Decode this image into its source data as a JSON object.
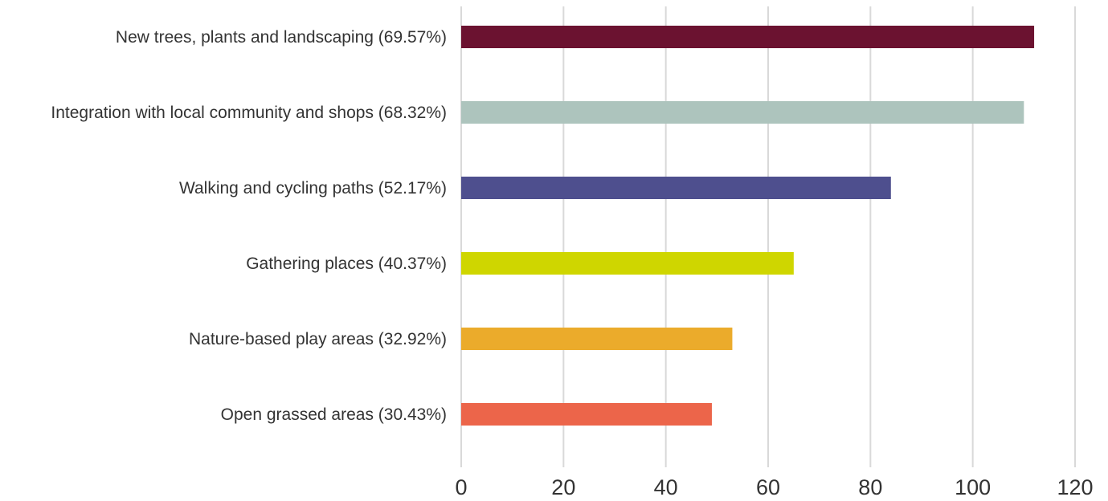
{
  "chart_data": {
    "type": "bar",
    "orientation": "horizontal",
    "categories": [
      "New trees, plants and landscaping (69.57%)",
      "Integration with local community and shops (68.32%)",
      "Walking and cycling paths (52.17%)",
      "Gathering places (40.37%)",
      "Nature-based play areas (32.92%)",
      "Open grassed areas (30.43%)"
    ],
    "values": [
      112,
      110,
      84,
      65,
      53,
      49
    ],
    "colors": [
      "#6b1230",
      "#adc4bd",
      "#4e4f8e",
      "#cfd600",
      "#ebab2b",
      "#ec654a"
    ],
    "xlim": [
      0,
      120
    ],
    "xticks": [
      "0",
      "20",
      "40",
      "60",
      "80",
      "100",
      "120"
    ],
    "grid": "vertical",
    "legend": "none",
    "title": "",
    "xlabel": "",
    "ylabel": ""
  }
}
